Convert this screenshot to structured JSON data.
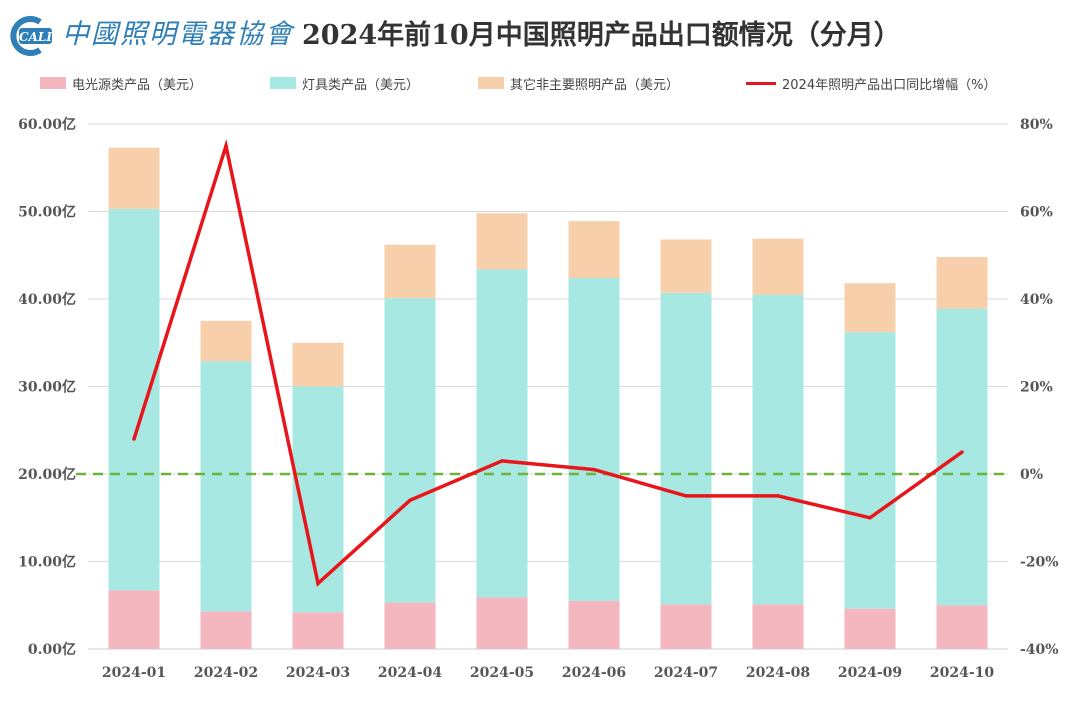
{
  "header": {
    "logo_badge": "CALI",
    "logo_text": "中國照明電器協會",
    "title": "2024年前10月中国照明产品出口额情况（分月）"
  },
  "colors": {
    "light_source": "#f4b6bf",
    "luminaire": "#a8e8e2",
    "other": "#f8cfab",
    "growth_line": "#e8161b",
    "zero_line": "#6db33f",
    "logo": "#2e7fb8"
  },
  "chart_data": {
    "type": "bar",
    "stacked": true,
    "categories": [
      "2024-01",
      "2024-02",
      "2024-03",
      "2024-04",
      "2024-05",
      "2024-06",
      "2024-07",
      "2024-08",
      "2024-09",
      "2024-10"
    ],
    "series": [
      {
        "name": "电光源类产品（美元）",
        "values": [
          6.7,
          4.3,
          4.2,
          5.3,
          5.9,
          5.5,
          5.1,
          5.1,
          4.6,
          5.0
        ]
      },
      {
        "name": "灯具类产品（美元）",
        "values": [
          43.6,
          28.6,
          25.8,
          34.8,
          37.5,
          36.9,
          35.6,
          35.4,
          31.6,
          33.9
        ]
      },
      {
        "name": "其它非主要照明产品（美元）",
        "values": [
          7.0,
          4.6,
          5.0,
          6.1,
          6.4,
          6.5,
          6.1,
          6.4,
          5.6,
          5.9
        ]
      }
    ],
    "line_series": {
      "name": "2024年照明产品出口同比增幅（%）",
      "axis": "right",
      "values": [
        8,
        75,
        -25,
        -6,
        3,
        1,
        -5,
        -5,
        -10,
        5
      ]
    },
    "y_left": {
      "min": 0,
      "max": 60,
      "step": 10,
      "tick_labels": [
        "0.00亿",
        "10.00亿",
        "20.00亿",
        "30.00亿",
        "40.00亿",
        "50.00亿",
        "60.00亿"
      ]
    },
    "y_right": {
      "min": -40,
      "max": 80,
      "step": 20,
      "tick_labels": [
        "-40%",
        "-20%",
        "0%",
        "20%",
        "40%",
        "60%",
        "80%"
      ]
    },
    "reference_line": {
      "axis": "right",
      "value": 0,
      "style": "dashed"
    },
    "grid": true,
    "legend_position": "top"
  }
}
